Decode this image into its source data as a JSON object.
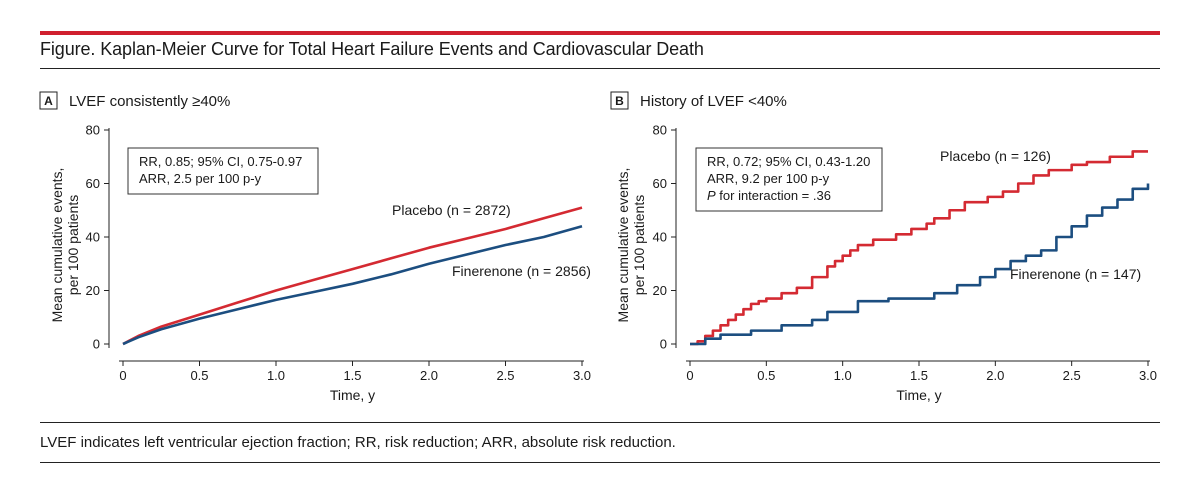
{
  "figure": {
    "title": "Figure. Kaplan-Meier Curve for Total Heart Failure Events and Cardiovascular Death",
    "caption": "LVEF indicates left ventricular ejection fraction; RR, risk reduction; ARR, absolute risk reduction."
  },
  "colors": {
    "placebo": "#d42a32",
    "finerenone": "#1c4e80",
    "accent": "#d0202e"
  },
  "chart_data": [
    {
      "type": "line",
      "panel_letter": "A",
      "title": "LVEF consistently ≥40%",
      "xlabel": "Time, y",
      "ylabel_line1": "Mean cumulative events,",
      "ylabel_line2": "per 100 patients",
      "xlim": [
        0,
        3.0
      ],
      "ylim": [
        0,
        80
      ],
      "xticks": [
        0,
        0.5,
        1.0,
        1.5,
        2.0,
        2.5,
        3.0
      ],
      "xtick_labels": [
        "0",
        "0.5",
        "1.0",
        "1.5",
        "2.0",
        "2.5",
        "3.0"
      ],
      "yticks": [
        0,
        20,
        40,
        60,
        80
      ],
      "ytick_labels": [
        "0",
        "20",
        "40",
        "60",
        "80"
      ],
      "annotation_lines": [
        "RR, 0.85; 95% CI, 0.75-0.97",
        "ARR, 2.5 per 100 p-y"
      ],
      "series": [
        {
          "name": "Placebo",
          "label": "Placebo (n = 2872)",
          "step": false,
          "x": [
            0,
            0.1,
            0.25,
            0.5,
            0.75,
            1.0,
            1.25,
            1.5,
            1.75,
            2.0,
            2.25,
            2.5,
            2.75,
            3.0
          ],
          "y": [
            0,
            3,
            6.5,
            11,
            15.5,
            20,
            24,
            28,
            32,
            36,
            39.5,
            43,
            47,
            51
          ]
        },
        {
          "name": "Finerenone",
          "label": "Finerenone (n = 2856)",
          "step": false,
          "x": [
            0,
            0.1,
            0.25,
            0.5,
            0.75,
            1.0,
            1.25,
            1.5,
            1.75,
            2.0,
            2.25,
            2.5,
            2.75,
            3.0
          ],
          "y": [
            0,
            2.5,
            5.5,
            9.5,
            13,
            16.5,
            19.5,
            22.5,
            26,
            30,
            33.5,
            37,
            40,
            44
          ]
        }
      ]
    },
    {
      "type": "line",
      "panel_letter": "B",
      "title": "History of LVEF <40%",
      "xlabel": "Time, y",
      "ylabel_line1": "Mean cumulative events,",
      "ylabel_line2": "per 100 patients",
      "xlim": [
        0,
        3.0
      ],
      "ylim": [
        0,
        80
      ],
      "xticks": [
        0,
        0.5,
        1.0,
        1.5,
        2.0,
        2.5,
        3.0
      ],
      "xtick_labels": [
        "0",
        "0.5",
        "1.0",
        "1.5",
        "2.0",
        "2.5",
        "3.0"
      ],
      "yticks": [
        0,
        20,
        40,
        60,
        80
      ],
      "ytick_labels": [
        "0",
        "20",
        "40",
        "60",
        "80"
      ],
      "annotation_lines": [
        "RR, 0.72; 95% CI, 0.43-1.20",
        "ARR, 9.2 per 100 p-y",
        "P for interaction = .36"
      ],
      "series": [
        {
          "name": "Placebo",
          "label": "Placebo (n = 126)",
          "step": true,
          "x": [
            0,
            0.05,
            0.1,
            0.15,
            0.2,
            0.25,
            0.3,
            0.35,
            0.4,
            0.45,
            0.5,
            0.6,
            0.7,
            0.8,
            0.9,
            0.95,
            1.0,
            1.05,
            1.1,
            1.2,
            1.35,
            1.45,
            1.55,
            1.6,
            1.7,
            1.8,
            1.95,
            2.05,
            2.15,
            2.25,
            2.35,
            2.5,
            2.6,
            2.75,
            2.9,
            3.0
          ],
          "y": [
            0,
            1,
            3,
            5,
            7,
            9,
            11,
            13,
            15,
            16,
            17,
            19,
            21,
            25,
            29,
            31,
            33,
            35,
            37,
            39,
            41,
            43,
            45,
            47,
            50,
            53,
            55,
            57,
            60,
            63,
            65,
            67,
            68,
            70,
            72,
            72
          ]
        },
        {
          "name": "Finerenone",
          "label": "Finerenone (n = 147)",
          "step": true,
          "x": [
            0,
            0.1,
            0.2,
            0.4,
            0.6,
            0.8,
            0.9,
            1.1,
            1.3,
            1.6,
            1.75,
            1.9,
            2.0,
            2.1,
            2.2,
            2.3,
            2.4,
            2.5,
            2.6,
            2.7,
            2.8,
            2.9,
            3.0
          ],
          "y": [
            0,
            2,
            3.5,
            5,
            7,
            9,
            12,
            16,
            17,
            19,
            22,
            25,
            28,
            31,
            33,
            35,
            40,
            44,
            48,
            51,
            54,
            58,
            60
          ]
        }
      ]
    }
  ]
}
